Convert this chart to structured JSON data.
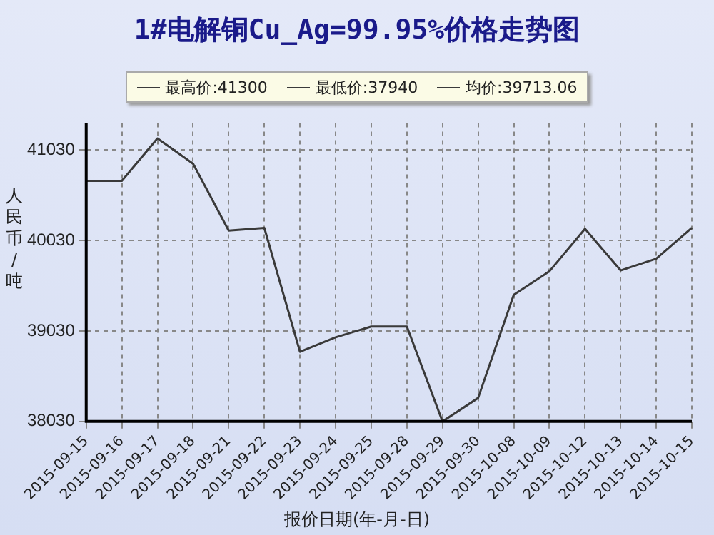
{
  "chart_data": {
    "type": "line",
    "title": "1#电解铜Cu_Ag=99.95%价格走势图",
    "xlabel": "报价日期(年-月-日)",
    "ylabel": "人民币/吨",
    "annotations": [
      "最高价:41300",
      "最低价:37940",
      "均价:39713.06"
    ],
    "categories": [
      "2015-09-15",
      "2015-09-16",
      "2015-09-17",
      "2015-09-18",
      "2015-09-21",
      "2015-09-22",
      "2015-09-23",
      "2015-09-24",
      "2015-09-25",
      "2015-09-28",
      "2015-09-29",
      "2015-09-30",
      "2015-10-08",
      "2015-10-09",
      "2015-10-12",
      "2015-10-13",
      "2015-10-14",
      "2015-10-15"
    ],
    "series": [
      {
        "color": "#3a3a3a",
        "values": [
          40690,
          40690,
          41160,
          40880,
          40140,
          40170,
          38800,
          38960,
          39080,
          39080,
          38030,
          38290,
          39430,
          39690,
          40160,
          39700,
          39830,
          40170
        ]
      }
    ],
    "ylim": [
      38030,
      41330
    ],
    "yticks": [
      38030,
      39030,
      40030,
      41030
    ],
    "grid": true,
    "legend": false,
    "marker": "none",
    "line_style": "solid"
  }
}
